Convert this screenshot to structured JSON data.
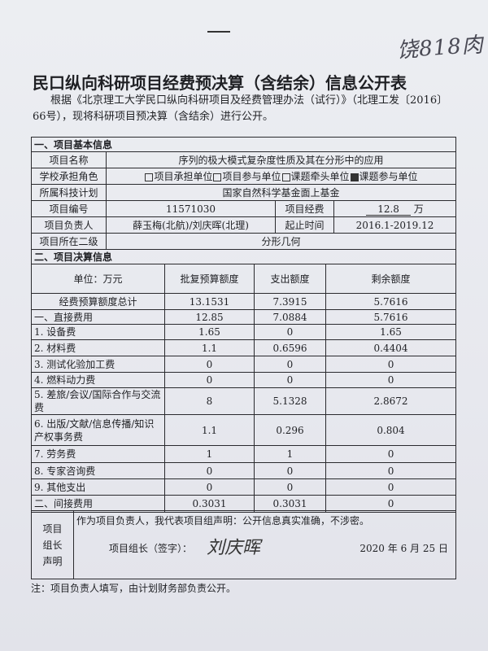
{
  "handwriting": "饶818肉",
  "title": "民口纵向科研项目经费预决算（含结余）信息公开表",
  "intro": "根据《北京理工大学民口纵向科研项目及经费管理办法（试行）》（北理工发〔2016〕66号），现将科研项目预决算（含结余）进行公开。",
  "section1": {
    "heading": "一、项目基本信息",
    "name_label": "项目名称",
    "name_value": "序列的极大模式复杂度性质及其在分形中的应用",
    "role_label": "学校承担角色",
    "roles": [
      {
        "label": "项目承担单位",
        "checked": false
      },
      {
        "label": "项目参与单位",
        "checked": false
      },
      {
        "label": "课题牵头单位",
        "checked": false
      },
      {
        "label": "课题参与单位",
        "checked": true
      }
    ],
    "plan_label": "所属科技计划",
    "plan_value": "国家自然科学基金面上基金",
    "number_label": "项目编号",
    "number_value": "11571030",
    "funding_label": "项目经费",
    "funding_value": "12.8",
    "funding_unit": "万",
    "leader_label": "项目负责人",
    "leader_value": "薛玉梅(北航)/刘庆晖(北理)",
    "period_label": "起止时间",
    "period_value": "2016.1-2019.12",
    "discipline_label": "项目所在二级",
    "discipline_value": "分形几何"
  },
  "section2": {
    "heading": "二、项目决算信息",
    "columns": [
      "单位：万元",
      "批复预算额度",
      "支出额度",
      "剩余额度"
    ],
    "rows": [
      {
        "item": "经费预算额度总计",
        "budget": "13.1531",
        "spent": "7.3915",
        "remaining": "5.7616"
      },
      {
        "item": "一、直接费用",
        "budget": "12.85",
        "spent": "7.0884",
        "remaining": "5.7616"
      },
      {
        "item": "1. 设备费",
        "budget": "1.65",
        "spent": "0",
        "remaining": "1.65"
      },
      {
        "item": "2. 材料费",
        "budget": "1.1",
        "spent": "0.6596",
        "remaining": "0.4404"
      },
      {
        "item": "3. 测试化验加工费",
        "budget": "0",
        "spent": "0",
        "remaining": "0"
      },
      {
        "item": "4. 燃料动力费",
        "budget": "0",
        "spent": "0",
        "remaining": "0"
      },
      {
        "item": "5. 差旅/会议/国际合作与交流费",
        "budget": "8",
        "spent": "5.1328",
        "remaining": "2.8672"
      },
      {
        "item": "6. 出版/文献/信息传播/知识产权事务费",
        "budget": "1.1",
        "spent": "0.296",
        "remaining": "0.804"
      },
      {
        "item": "7. 劳务费",
        "budget": "1",
        "spent": "1",
        "remaining": "0"
      },
      {
        "item": "8. 专家咨询费",
        "budget": "0",
        "spent": "0",
        "remaining": "0"
      },
      {
        "item": "9. 其他支出",
        "budget": "0",
        "spent": "0",
        "remaining": "0"
      },
      {
        "item": "二、间接费用",
        "budget": "0.3031",
        "spent": "0.3031",
        "remaining": "0"
      }
    ]
  },
  "statement": {
    "label": "项目组长声明",
    "text": "作为项目负责人，我代表项目组声明：公开信息真实准确，不涉密。",
    "sign_label": "项目组长（签字）：",
    "signature": "刘庆晖",
    "year": "2020",
    "year_unit": "年",
    "month": "6",
    "month_unit": "月",
    "day": "25",
    "day_unit": "日"
  },
  "note": "注：项目负责人填写，由计划财务部负责公开。"
}
